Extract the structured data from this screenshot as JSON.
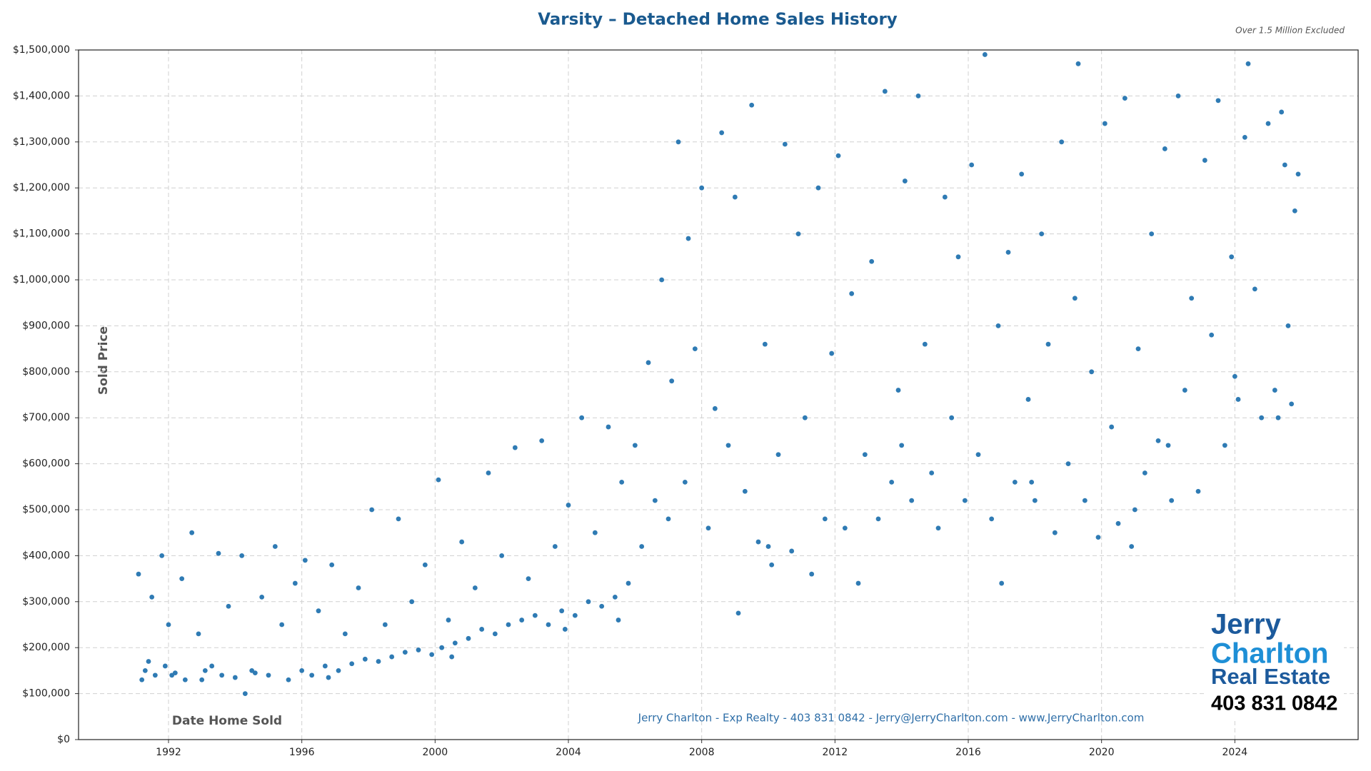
{
  "chart_data": {
    "type": "scatter",
    "title": "Varsity – Detached Home Sales History",
    "subtitle": "Over 1.5 Million Excluded",
    "y_label": "Sold Price",
    "x_label": "Date Home Sold",
    "footer": "Jerry Charlton - Exp Realty - 403 831 0842 - Jerry@JerryCharlton.com - www.JerryCharlton.com",
    "logo": {
      "line1": "Jerry",
      "line2": "Charlton",
      "line3": "Real Estate",
      "phone": "403 831 0842"
    },
    "color": "#2f7bb4",
    "grid": true,
    "xlim": [
      1989.3,
      2027.7
    ],
    "xticks": [
      1992,
      1996,
      2000,
      2004,
      2008,
      2012,
      2016,
      2020,
      2024
    ],
    "ylim": [
      0,
      1500000
    ],
    "yticks": [
      {
        "value": 0,
        "label": "$0"
      },
      {
        "value": 100000,
        "label": "$100,000"
      },
      {
        "value": 200000,
        "label": "$200,000"
      },
      {
        "value": 300000,
        "label": "$300,000"
      },
      {
        "value": 400000,
        "label": "$400,000"
      },
      {
        "value": 500000,
        "label": "$500,000"
      },
      {
        "value": 600000,
        "label": "$600,000"
      },
      {
        "value": 700000,
        "label": "$700,000"
      },
      {
        "value": 800000,
        "label": "$800,000"
      },
      {
        "value": 900000,
        "label": "$900,000"
      },
      {
        "value": 1000000,
        "label": "$1,000,000"
      },
      {
        "value": 1100000,
        "label": "$1,100,000"
      },
      {
        "value": 1200000,
        "label": "$1,200,000"
      },
      {
        "value": 1300000,
        "label": "$1,300,000"
      },
      {
        "value": 1400000,
        "label": "$1,400,000"
      },
      {
        "value": 1500000,
        "label": "$1,500,000"
      }
    ],
    "x": [
      1991.1,
      1991.2,
      1991.3,
      1991.5,
      1991.6,
      1991.8,
      1991.9,
      1992.0,
      1992.2,
      1992.4,
      1992.5,
      1992.7,
      1992.9,
      1993.1,
      1993.3,
      1993.5,
      1993.6,
      1993.8,
      1994.0,
      1994.2,
      1994.3,
      1994.5,
      1994.8,
      1995.0,
      1995.2,
      1995.4,
      1995.6,
      1995.8,
      1996.0,
      1996.1,
      1996.3,
      1996.5,
      1996.7,
      1996.9,
      1997.1,
      1997.3,
      1997.5,
      1997.7,
      1997.9,
      1998.1,
      1998.3,
      1998.5,
      1998.7,
      1998.9,
      1999.1,
      1999.3,
      1999.5,
      1999.7,
      1999.9,
      2000.1,
      2000.2,
      2000.4,
      2000.6,
      2000.8,
      2001.0,
      2001.2,
      2001.4,
      2001.6,
      2001.8,
      2002.0,
      2002.2,
      2002.4,
      2002.6,
      2002.8,
      2003.0,
      2003.2,
      2003.4,
      2003.6,
      2003.8,
      2004.0,
      2004.2,
      2004.4,
      2004.6,
      2004.8,
      2005.0,
      2005.2,
      2005.4,
      2005.6,
      2005.8,
      2006.0,
      2006.2,
      2006.4,
      2006.6,
      2006.8,
      2007.0,
      2007.1,
      2007.3,
      2007.5,
      2007.6,
      2007.8,
      2008.0,
      2008.2,
      2008.4,
      2008.6,
      2008.8,
      2009.0,
      2009.1,
      2009.3,
      2009.5,
      2009.7,
      2009.9,
      2010.1,
      2010.3,
      2010.5,
      2010.7,
      2010.9,
      2011.1,
      2011.3,
      2011.5,
      2011.7,
      2011.9,
      2012.1,
      2012.3,
      2012.5,
      2012.7,
      2012.9,
      2013.1,
      2013.3,
      2013.5,
      2013.7,
      2013.9,
      2014.1,
      2014.3,
      2014.5,
      2014.7,
      2014.9,
      2015.1,
      2015.3,
      2015.5,
      2015.7,
      2015.9,
      2016.1,
      2016.3,
      2016.5,
      2016.7,
      2016.9,
      2017.0,
      2017.2,
      2017.4,
      2017.6,
      2017.8,
      2018.0,
      2018.2,
      2018.4,
      2018.6,
      2018.8,
      2019.0,
      2019.2,
      2019.3,
      2019.5,
      2019.7,
      2019.9,
      2020.1,
      2020.3,
      2020.5,
      2020.7,
      2020.9,
      2021.1,
      2021.3,
      2021.5,
      2021.7,
      2021.9,
      2022.1,
      2022.3,
      2022.5,
      2022.7,
      2022.9,
      2023.1,
      2023.3,
      2023.5,
      2023.7,
      2023.9,
      2024.1,
      2024.3,
      2024.4,
      2024.6,
      2024.8,
      2025.0,
      2025.2,
      2025.4,
      2025.5,
      2025.6,
      2025.7,
      2025.8,
      2025.9,
      1991.4,
      1992.1,
      1993.0,
      1994.6,
      1996.8,
      2000.5,
      2003.9,
      2005.5,
      2010.0,
      2014.0,
      2017.9,
      2021.0,
      2022.0,
      2024.0,
      2025.3
    ],
    "values": [
      360000,
      130000,
      150000,
      310000,
      140000,
      400000,
      160000,
      250000,
      145000,
      350000,
      130000,
      450000,
      230000,
      150000,
      160000,
      405000,
      140000,
      290000,
      135000,
      400000,
      100000,
      150000,
      310000,
      140000,
      420000,
      250000,
      130000,
      340000,
      150000,
      390000,
      140000,
      280000,
      160000,
      380000,
      150000,
      230000,
      165000,
      330000,
      175000,
      500000,
      170000,
      250000,
      180000,
      480000,
      190000,
      300000,
      195000,
      380000,
      185000,
      565000,
      200000,
      260000,
      210000,
      430000,
      220000,
      330000,
      240000,
      580000,
      230000,
      400000,
      250000,
      635000,
      260000,
      350000,
      270000,
      650000,
      250000,
      420000,
      280000,
      510000,
      270000,
      700000,
      300000,
      450000,
      290000,
      680000,
      310000,
      560000,
      340000,
      640000,
      420000,
      820000,
      520000,
      1000000,
      480000,
      780000,
      1300000,
      560000,
      1090000,
      850000,
      1200000,
      460000,
      720000,
      1320000,
      640000,
      1180000,
      275000,
      540000,
      1380000,
      430000,
      860000,
      380000,
      620000,
      1295000,
      410000,
      1100000,
      700000,
      360000,
      1200000,
      480000,
      840000,
      1270000,
      460000,
      970000,
      340000,
      620000,
      1040000,
      480000,
      1410000,
      560000,
      760000,
      1215000,
      520000,
      1400000,
      860000,
      580000,
      460000,
      1180000,
      700000,
      1050000,
      520000,
      1250000,
      620000,
      1490000,
      480000,
      900000,
      340000,
      1060000,
      560000,
      1230000,
      740000,
      520000,
      1100000,
      860000,
      450000,
      1300000,
      600000,
      960000,
      1470000,
      520000,
      800000,
      440000,
      1340000,
      680000,
      470000,
      1395000,
      420000,
      850000,
      580000,
      1100000,
      650000,
      1285000,
      520000,
      1400000,
      760000,
      960000,
      540000,
      1260000,
      880000,
      1390000,
      640000,
      1050000,
      740000,
      1310000,
      1470000,
      980000,
      700000,
      1340000,
      760000,
      1365000,
      1250000,
      900000,
      730000,
      1150000,
      1230000,
      170000,
      140000,
      130000,
      145000,
      135000,
      180000,
      240000,
      260000,
      420000,
      640000,
      560000,
      500000,
      640000,
      790000,
      700000
    ]
  }
}
